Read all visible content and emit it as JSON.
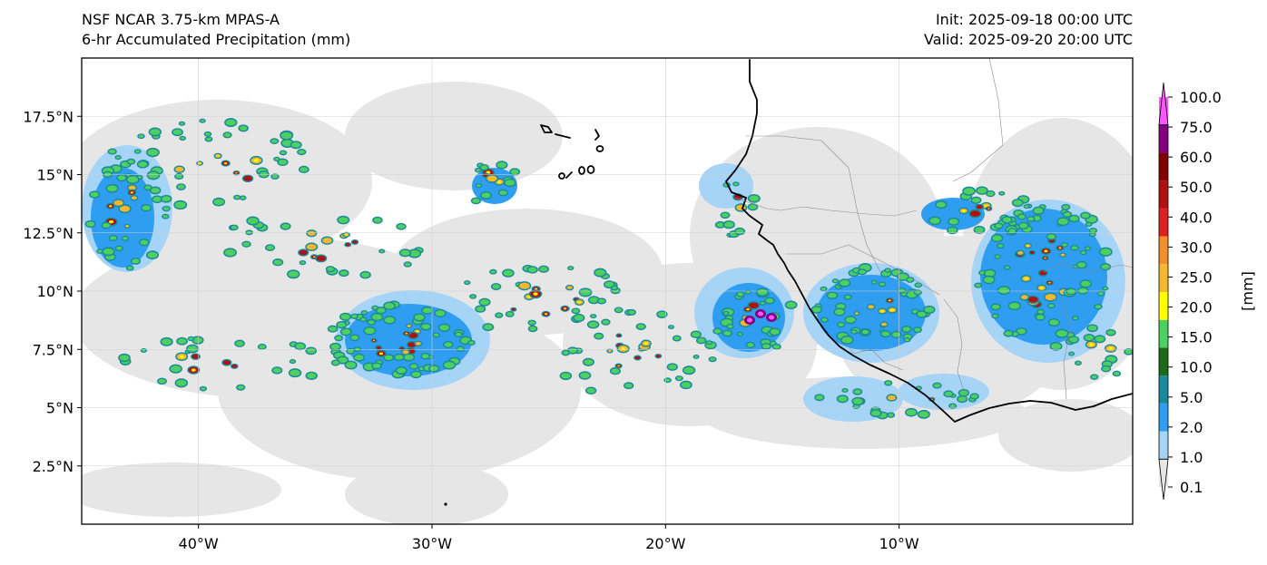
{
  "header": {
    "model": "NSF NCAR 3.75-km MPAS-A",
    "field": "6-hr Accumulated Precipitation (mm)",
    "init": "Init: 2025-09-18 00:00 UTC",
    "valid": "Valid: 2025-09-20 20:00 UTC"
  },
  "map": {
    "lon_range": [
      -45,
      0
    ],
    "lat_range": [
      0,
      20
    ],
    "lon_ticks": [
      {
        "value": -40,
        "label": "40°W"
      },
      {
        "value": -30,
        "label": "30°W"
      },
      {
        "value": -20,
        "label": "20°W"
      },
      {
        "value": -10,
        "label": "10°W"
      }
    ],
    "lat_ticks": [
      {
        "value": 17.5,
        "label": "17.5°N"
      },
      {
        "value": 15,
        "label": "15°N"
      },
      {
        "value": 12.5,
        "label": "12.5°N"
      },
      {
        "value": 10,
        "label": "10°N"
      },
      {
        "value": 7.5,
        "label": "7.5°N"
      },
      {
        "value": 5,
        "label": "5°N"
      },
      {
        "value": 2.5,
        "label": "2.5°N"
      }
    ],
    "grid": true
  },
  "colorbar": {
    "unit_label": "[mm]",
    "levels": [
      "0.1",
      "1.0",
      "2.0",
      "5.0",
      "10.0",
      "15.0",
      "20.0",
      "25.0",
      "30.0",
      "40.0",
      "50.0",
      "60.0",
      "75.0",
      "100.0"
    ],
    "colors": [
      "#e6e6e6",
      "#a6d4f7",
      "#2f9ef0",
      "#1a8a9a",
      "#1a6a1a",
      "#4ed060",
      "#ffff00",
      "#f5b730",
      "#f0902a",
      "#e02020",
      "#b01010",
      "#800000",
      "#800080",
      "#ff55ff"
    ]
  }
}
